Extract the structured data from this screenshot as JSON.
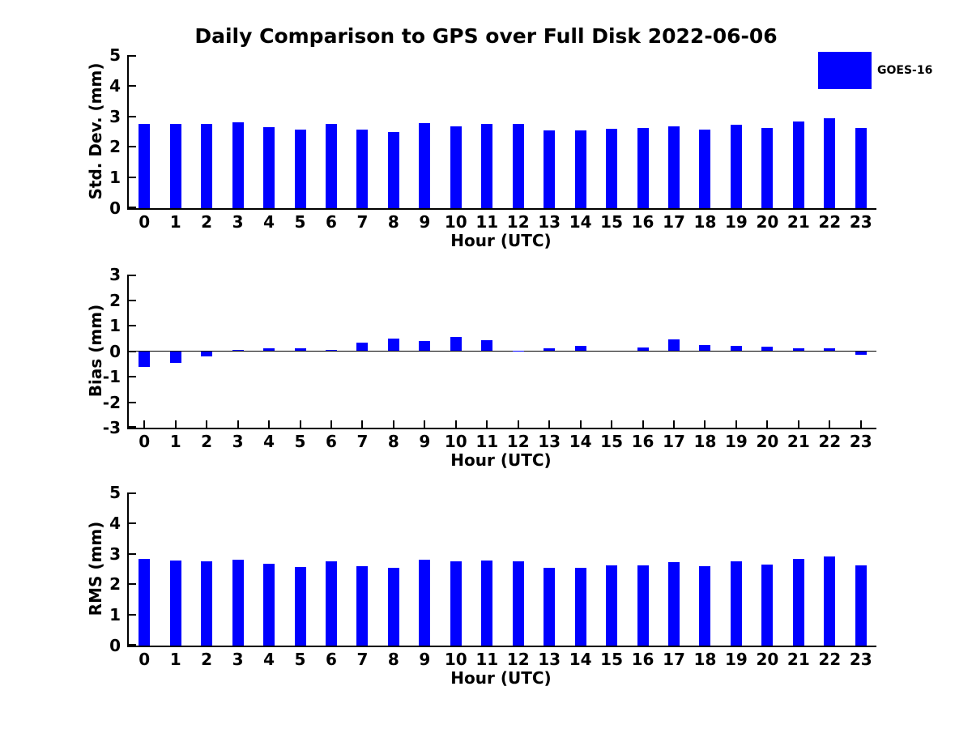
{
  "title": "Daily Comparison to GPS over Full Disk 2022-06-06",
  "legend": {
    "label": "GOES-16",
    "color": "#0000FF"
  },
  "colors": {
    "bar": "#0000FF",
    "axis": "#000000",
    "text": "#000000"
  },
  "chart_data": [
    {
      "type": "bar",
      "series_name": "GOES-16",
      "ylabel": "Std. Dev. (mm)",
      "xlabel": "Hour (UTC)",
      "categories": [
        0,
        1,
        2,
        3,
        4,
        5,
        6,
        7,
        8,
        9,
        10,
        11,
        12,
        13,
        14,
        15,
        16,
        17,
        18,
        19,
        20,
        21,
        22,
        23
      ],
      "values": [
        2.75,
        2.75,
        2.75,
        2.8,
        2.64,
        2.57,
        2.75,
        2.57,
        2.48,
        2.78,
        2.67,
        2.74,
        2.75,
        2.53,
        2.53,
        2.59,
        2.61,
        2.67,
        2.56,
        2.72,
        2.62,
        2.83,
        2.93,
        2.61
      ],
      "ylim": [
        0,
        5
      ],
      "yticks": [
        0,
        1,
        2,
        3,
        4,
        5
      ],
      "grid": false,
      "legend_position": "upper-right-outside"
    },
    {
      "type": "bar",
      "series_name": "GOES-16",
      "ylabel": "Bias (mm)",
      "xlabel": "Hour (UTC)",
      "categories": [
        0,
        1,
        2,
        3,
        4,
        5,
        6,
        7,
        8,
        9,
        10,
        11,
        12,
        13,
        14,
        15,
        16,
        17,
        18,
        19,
        20,
        21,
        22,
        23
      ],
      "values": [
        -0.62,
        -0.45,
        -0.2,
        0.04,
        0.1,
        0.12,
        0.04,
        0.32,
        0.48,
        0.41,
        0.56,
        0.43,
        0.03,
        0.1,
        0.22,
        0.0,
        0.14,
        0.45,
        0.23,
        0.21,
        0.17,
        0.11,
        0.12,
        -0.13
      ],
      "ylim": [
        -3,
        3
      ],
      "yticks": [
        -3,
        -2,
        -1,
        0,
        1,
        2,
        3
      ],
      "grid": false,
      "zero_line": true
    },
    {
      "type": "bar",
      "series_name": "GOES-16",
      "ylabel": "RMS (mm)",
      "xlabel": "Hour (UTC)",
      "categories": [
        0,
        1,
        2,
        3,
        4,
        5,
        6,
        7,
        8,
        9,
        10,
        11,
        12,
        13,
        14,
        15,
        16,
        17,
        18,
        19,
        20,
        21,
        22,
        23
      ],
      "values": [
        2.82,
        2.79,
        2.76,
        2.8,
        2.66,
        2.57,
        2.76,
        2.59,
        2.53,
        2.81,
        2.74,
        2.78,
        2.75,
        2.55,
        2.54,
        2.61,
        2.61,
        2.72,
        2.58,
        2.74,
        2.64,
        2.83,
        2.92,
        2.61
      ],
      "ylim": [
        0,
        5
      ],
      "yticks": [
        0,
        1,
        2,
        3,
        4,
        5
      ],
      "grid": false
    }
  ]
}
